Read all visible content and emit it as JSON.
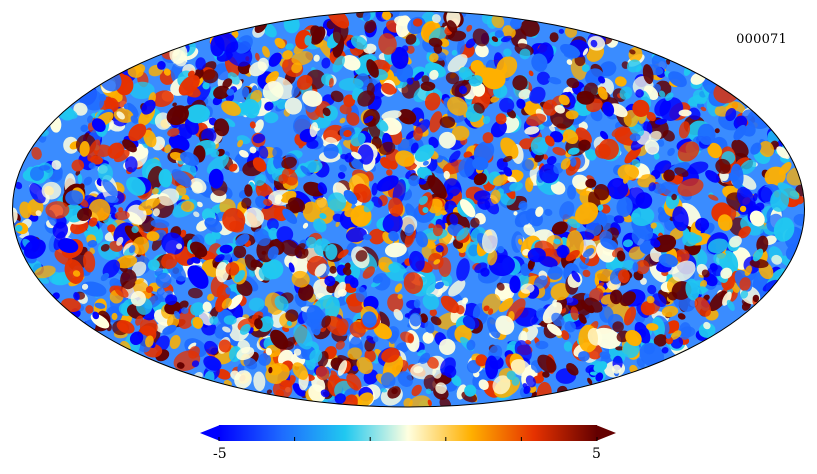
{
  "map": {
    "label": "000071",
    "projection": "mollweide",
    "style": "sky temperature anisotropy map"
  },
  "colorbar": {
    "min_label": "-5",
    "max_label": "5",
    "min": -5,
    "max": 5,
    "colormap": [
      "#0000ff",
      "#1e6bff",
      "#20c8f0",
      "#ffffe0",
      "#ffb000",
      "#e63200",
      "#640000"
    ],
    "extend": "both"
  }
}
